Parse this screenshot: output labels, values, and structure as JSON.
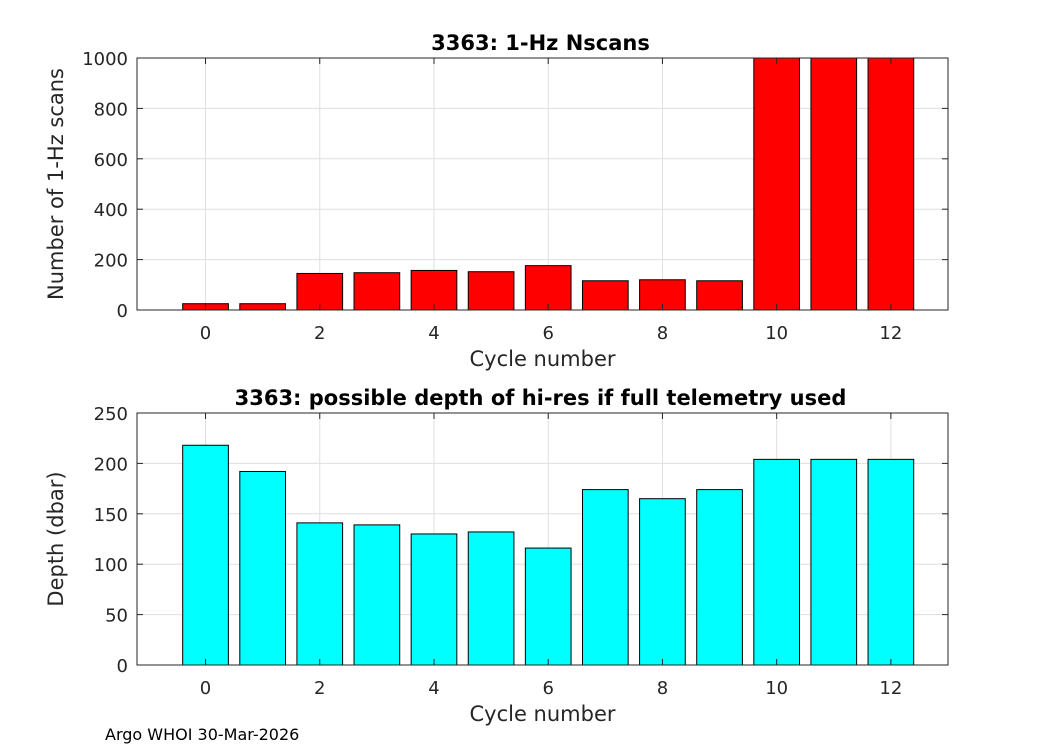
{
  "footer": "Argo WHOI 30-Mar-2026",
  "chart_data": [
    {
      "type": "bar",
      "title": "3363: 1-Hz Nscans",
      "xlabel": "Cycle number",
      "ylabel": "Number of 1-Hz scans",
      "x": [
        0,
        1,
        2,
        3,
        4,
        5,
        6,
        7,
        8,
        9,
        10,
        11,
        12
      ],
      "values": [
        25,
        25,
        145,
        148,
        157,
        152,
        176,
        116,
        120,
        116,
        1000,
        1000,
        1000
      ],
      "xlim": [
        -1.2,
        13
      ],
      "ylim": [
        0,
        1000
      ],
      "xticks": [
        0,
        2,
        4,
        6,
        8,
        10,
        12
      ],
      "yticks": [
        0,
        200,
        400,
        600,
        800,
        1000
      ],
      "bar_color": "#ff0000",
      "grid": true
    },
    {
      "type": "bar",
      "title": "3363: possible depth of hi-res if full telemetry used",
      "xlabel": "Cycle number",
      "ylabel": "Depth (dbar)",
      "x": [
        0,
        1,
        2,
        3,
        4,
        5,
        6,
        7,
        8,
        9,
        10,
        11,
        12
      ],
      "values": [
        218,
        192,
        141,
        139,
        130,
        132,
        116,
        174,
        165,
        174,
        204,
        204,
        204
      ],
      "xlim": [
        -1.2,
        13
      ],
      "ylim": [
        0,
        250
      ],
      "xticks": [
        0,
        2,
        4,
        6,
        8,
        10,
        12
      ],
      "yticks": [
        0,
        50,
        100,
        150,
        200,
        250
      ],
      "bar_color": "#00ffff",
      "grid": true
    }
  ]
}
